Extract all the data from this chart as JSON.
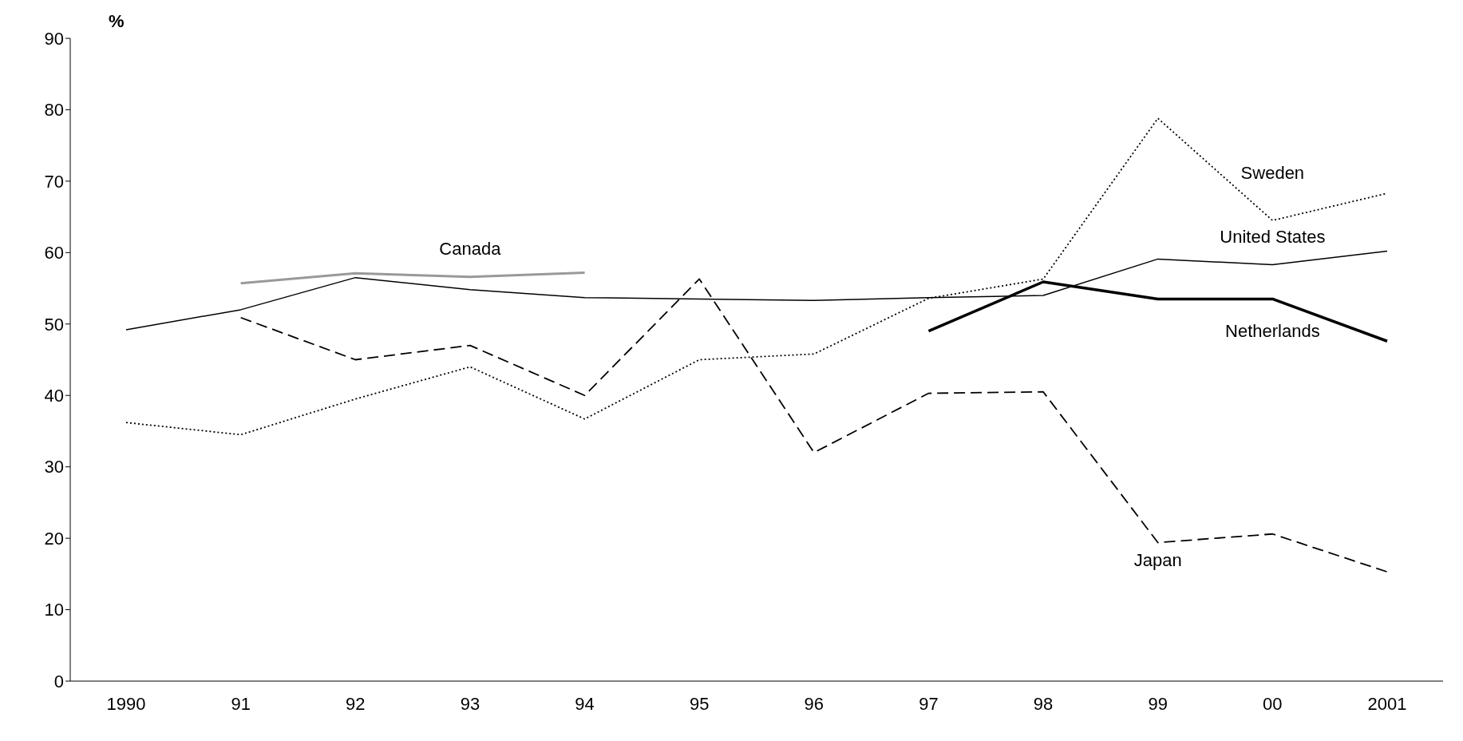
{
  "chart_data": {
    "type": "line",
    "ylabel": "%",
    "categories": [
      "1990",
      "91",
      "92",
      "93",
      "94",
      "95",
      "96",
      "97",
      "98",
      "99",
      "00",
      "2001"
    ],
    "series": [
      {
        "name": "United States",
        "color": "#000000",
        "line_style": "solid",
        "values": [
          49.2,
          52,
          56.5,
          54.8,
          53.7,
          53.5,
          53.3,
          53.7,
          54,
          59.1,
          58.3,
          60.2
        ]
      },
      {
        "name": "Canada",
        "color": "#999999",
        "line_style": "solid",
        "values": [
          null,
          55.7,
          57.1,
          56.6,
          57.2,
          null,
          null,
          null,
          null,
          null,
          null,
          null
        ]
      },
      {
        "name": "Japan",
        "color": "#000000",
        "line_style": "dashed",
        "values": [
          null,
          50.9,
          45,
          47,
          40,
          56.3,
          32,
          40.3,
          40.5,
          19.4,
          20.6,
          15.3
        ]
      },
      {
        "name": "Sweden",
        "color": "#000000",
        "line_style": "dotted",
        "values": [
          36.2,
          34.5,
          39.5,
          44,
          36.7,
          45,
          45.8,
          53.6,
          56.3,
          78.8,
          64.5,
          68.3
        ]
      },
      {
        "name": "Netherlands",
        "color": "#000000",
        "line_style": "solid",
        "values": [
          null,
          null,
          null,
          null,
          null,
          null,
          null,
          49,
          55.9,
          53.5,
          53.5,
          47.6
        ]
      }
    ],
    "ylim": [
      0,
      90
    ],
    "yticks": [
      0,
      10,
      20,
      30,
      40,
      50,
      60,
      70,
      80,
      90
    ],
    "grid": false,
    "legend": false,
    "marker": "none"
  }
}
